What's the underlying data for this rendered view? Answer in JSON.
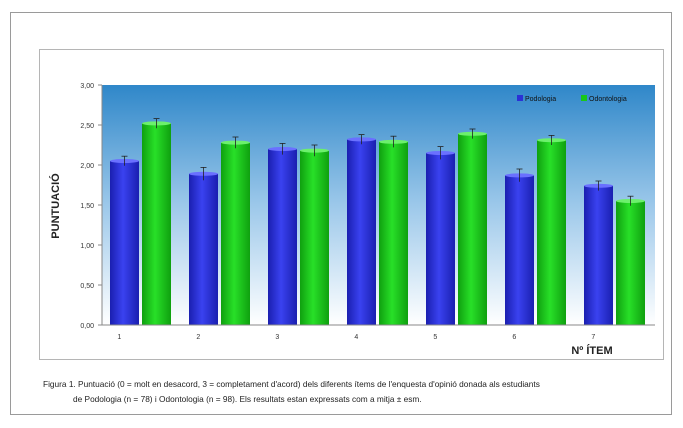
{
  "chart_data": {
    "type": "bar",
    "categories": [
      "1",
      "2",
      "3",
      "4",
      "5",
      "6",
      "7"
    ],
    "series": [
      {
        "name": "Podologia",
        "values": [
          2.05,
          1.89,
          2.2,
          2.32,
          2.15,
          1.87,
          1.74
        ],
        "errors": [
          0.06,
          0.08,
          0.07,
          0.06,
          0.08,
          0.08,
          0.06
        ],
        "color": "#2b31d6"
      },
      {
        "name": "Odontologia",
        "values": [
          2.52,
          2.28,
          2.18,
          2.29,
          2.39,
          2.31,
          1.55
        ],
        "errors": [
          0.06,
          0.07,
          0.07,
          0.07,
          0.06,
          0.06,
          0.06
        ],
        "color": "#18c818"
      }
    ],
    "ylabel": "PUNTUACIÓ",
    "xlabel": "Nº ÍTEM",
    "ylim": [
      0,
      3
    ],
    "yticks": [
      "0,00",
      "0,50",
      "1,00",
      "1,50",
      "2,00",
      "2,50",
      "3,00"
    ],
    "legend_position": "top-right",
    "grid": false
  },
  "caption": {
    "line1": "Figura 1. Puntuació (0 = molt en desacord, 3 = completament d'acord) dels diferents ítems de l'enquesta d'opinió donada als estudiants",
    "line2": "de Podologia (n = 78) i Odontologia (n = 98).  Els resultats estan expressats com a mitja ± esm."
  }
}
